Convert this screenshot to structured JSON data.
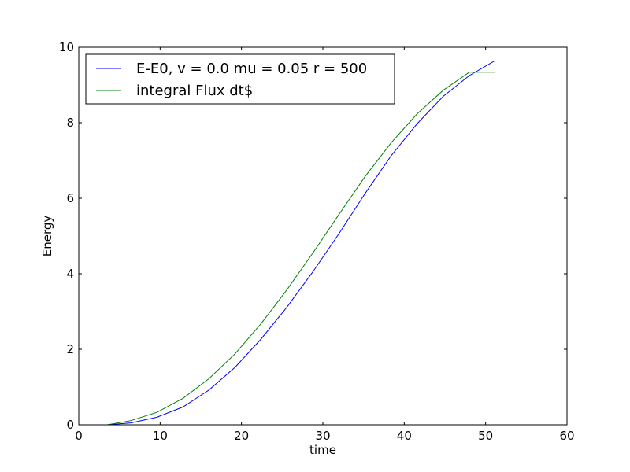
{
  "chart_data": {
    "type": "line",
    "xlabel": "time",
    "ylabel": "Energy",
    "xlim": [
      0,
      60
    ],
    "ylim": [
      0,
      10
    ],
    "xticks": [
      0,
      10,
      20,
      30,
      40,
      50,
      60
    ],
    "yticks": [
      0,
      2,
      4,
      6,
      8,
      10
    ],
    "grid": false,
    "legend_position": "top-left",
    "series": [
      {
        "name": "E-E0, v = 0.0 mu = 0.05 r = 500",
        "color": "#0000ff",
        "x": [
          3.5,
          6.4,
          9.6,
          12.8,
          16.0,
          19.2,
          22.4,
          25.6,
          28.8,
          32.0,
          35.2,
          38.4,
          41.6,
          44.8,
          48.0,
          51.2
        ],
        "y": [
          0.0,
          0.05,
          0.2,
          0.47,
          0.92,
          1.52,
          2.27,
          3.12,
          4.06,
          5.07,
          6.13,
          7.13,
          7.98,
          8.7,
          9.25,
          9.65
        ]
      },
      {
        "name": "integral Flux dt$",
        "color": "#008000",
        "x": [
          3.5,
          6.4,
          9.6,
          12.8,
          16.0,
          19.2,
          22.4,
          25.6,
          28.8,
          32.0,
          35.2,
          38.4,
          41.6,
          44.8,
          48.0,
          51.2
        ],
        "y": [
          0.0,
          0.11,
          0.33,
          0.7,
          1.22,
          1.88,
          2.68,
          3.58,
          4.56,
          5.58,
          6.58,
          7.47,
          8.24,
          8.86,
          9.34,
          9.34
        ]
      }
    ]
  }
}
